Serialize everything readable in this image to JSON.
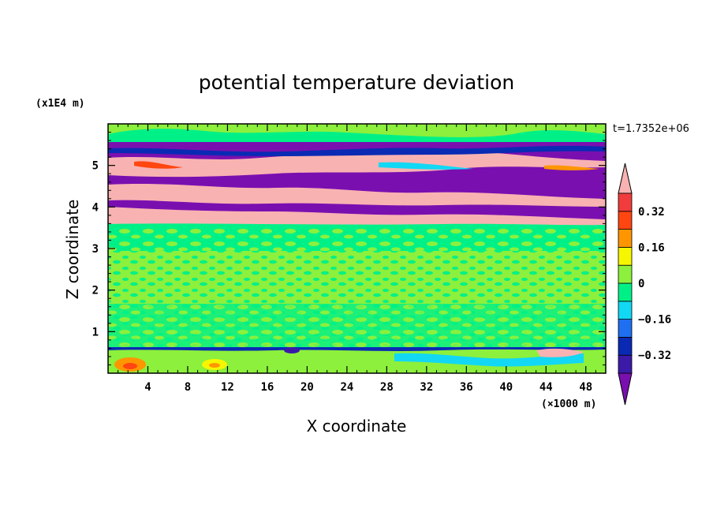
{
  "chart_data": {
    "type": "heatmap",
    "title": "potential temperature deviation",
    "xlabel": "X coordinate",
    "ylabel": "Z coordinate",
    "x_unit": "(×1000 m)",
    "y_unit": "(x1E4 m)",
    "time_label": "t=1.7352e+06",
    "xlim": [
      0,
      50
    ],
    "ylim": [
      0,
      6
    ],
    "xticks": [
      4,
      8,
      12,
      16,
      20,
      24,
      28,
      32,
      36,
      40,
      44,
      48
    ],
    "xtick_labels": [
      "4",
      "8",
      "12",
      "16",
      "20",
      "24",
      "28",
      "32",
      "36",
      "40",
      "44",
      "48"
    ],
    "yticks": [
      1,
      2,
      3,
      4,
      5
    ],
    "ytick_labels": [
      "1",
      "2",
      "3",
      "4",
      "5"
    ],
    "colorbar": {
      "levels": [
        -0.4,
        -0.32,
        -0.24,
        -0.16,
        -0.08,
        0,
        0.08,
        0.16,
        0.24,
        0.32,
        0.4
      ],
      "labeled_levels": [
        0.32,
        0.16,
        0,
        -0.16,
        -0.32
      ],
      "labels": [
        "0.32",
        "0.16",
        "0",
        "−0.16",
        "−0.32"
      ],
      "colors": [
        "#7a0fb0",
        "#3c1aa8",
        "#0a2ab4",
        "#1f6ff0",
        "#12d8f4",
        "#00f088",
        "#8cf03c",
        "#f6f600",
        "#ff9600",
        "#ff4610",
        "#f03c3c",
        "#f8b2b2"
      ],
      "extend": "both"
    },
    "bands": [
      {
        "z": [
          0.0,
          0.62
        ],
        "dominant": "light-green",
        "description_level": [
          -0.08,
          0.16
        ]
      },
      {
        "z": [
          0.62,
          3.5
        ],
        "dominant": "light-green",
        "description_level": [
          -0.08,
          0.08
        ]
      },
      {
        "z": [
          3.5,
          5.6
        ],
        "dominant": "pink-purple",
        "description_level": [
          -0.4,
          0.4
        ]
      },
      {
        "z": [
          5.6,
          6.0
        ],
        "dominant": "light-green",
        "description_level": [
          -0.08,
          0.08
        ]
      }
    ]
  }
}
